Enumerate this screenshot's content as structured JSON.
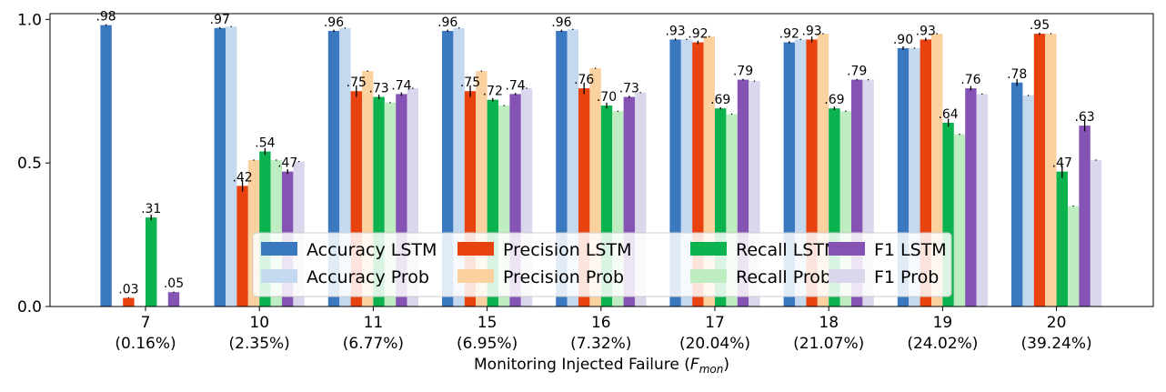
{
  "chart_data": {
    "type": "bar",
    "categories": [
      "7",
      "10",
      "11",
      "15",
      "16",
      "17",
      "18",
      "19",
      "20"
    ],
    "category_sublabels": [
      "(0.16%)",
      "(2.35%)",
      "(6.77%)",
      "(6.95%)",
      "(7.32%)",
      "(20.04%)",
      "(21.07%)",
      "(24.02%)",
      "(39.24%)"
    ],
    "xlabel": "Monitoring Injected Failure (F_mon)",
    "xlabel_main": "Monitoring Injected Failure (",
    "xlabel_var": "F",
    "xlabel_sub": "mon",
    "xlabel_end": ")",
    "ylabel": "",
    "ylim": [
      0,
      1.02
    ],
    "yticks": [
      0.0,
      0.5,
      1.0
    ],
    "ytick_labels": [
      "0.0",
      "0.5",
      "1.0"
    ],
    "legend_position": "lower center",
    "legend_columns": 4,
    "series": [
      {
        "name": "Accuracy LSTM",
        "color": "#3a78c0",
        "values": [
          0.98,
          0.97,
          0.96,
          0.96,
          0.96,
          0.93,
          0.92,
          0.9,
          0.78
        ],
        "labels": [
          ".98",
          ".97",
          ".96",
          ".96",
          ".96",
          ".93",
          ".92",
          ".90",
          ".78"
        ],
        "errors": [
          0.003,
          0.003,
          0.004,
          0.004,
          0.004,
          0.004,
          0.004,
          0.006,
          0.012
        ]
      },
      {
        "name": "Accuracy Prob",
        "color": "#c4d8ef",
        "values": [
          0.0,
          0.975,
          0.97,
          0.97,
          0.965,
          0.93,
          0.93,
          0.9,
          0.735
        ],
        "labels": [],
        "errors": [
          0,
          0.002,
          0.002,
          0.002,
          0.002,
          0.002,
          0.002,
          0.002,
          0.002
        ]
      },
      {
        "name": "Precision LSTM",
        "color": "#e8420f",
        "values": [
          0.03,
          0.42,
          0.75,
          0.75,
          0.76,
          0.92,
          0.93,
          0.93,
          0.95
        ],
        "labels": [
          ".03",
          ".42",
          ".75",
          ".75",
          ".76",
          ".92",
          ".93",
          ".93",
          ".95"
        ],
        "errors": [
          0.002,
          0.02,
          0.02,
          0.02,
          0.02,
          0.006,
          0.01,
          0.006,
          0.004
        ]
      },
      {
        "name": "Precision Prob",
        "color": "#fbd29f",
        "values": [
          0.0,
          0.51,
          0.82,
          0.82,
          0.83,
          0.94,
          0.95,
          0.95,
          0.95
        ],
        "labels": [],
        "errors": [
          0,
          0.002,
          0.002,
          0.002,
          0.002,
          0.002,
          0.002,
          0.002,
          0.002
        ]
      },
      {
        "name": "Recall LSTM",
        "color": "#0bb24e",
        "values": [
          0.31,
          0.54,
          0.73,
          0.72,
          0.7,
          0.69,
          0.69,
          0.64,
          0.47
        ],
        "labels": [
          ".31",
          ".54",
          ".73",
          ".72",
          ".70",
          ".69",
          ".69",
          ".64",
          ".47"
        ],
        "errors": [
          0.01,
          0.012,
          0.008,
          0.006,
          0.01,
          0.004,
          0.006,
          0.014,
          0.022
        ]
      },
      {
        "name": "Recall Prob",
        "color": "#bdedc1",
        "values": [
          0.0,
          0.51,
          0.71,
          0.7,
          0.68,
          0.67,
          0.68,
          0.6,
          0.35
        ],
        "labels": [],
        "errors": [
          0,
          0.002,
          0.002,
          0.002,
          0.002,
          0.002,
          0.002,
          0.002,
          0.002
        ]
      },
      {
        "name": "F1 LSTM",
        "color": "#8553b4",
        "values": [
          0.05,
          0.47,
          0.74,
          0.74,
          0.73,
          0.79,
          0.79,
          0.76,
          0.63
        ],
        "labels": [
          ".05",
          ".47",
          ".74",
          ".74",
          ".73",
          ".79",
          ".79",
          ".76",
          ".63"
        ],
        "errors": [
          0.002,
          0.008,
          0.006,
          0.004,
          0.004,
          0.003,
          0.003,
          0.008,
          0.02
        ]
      },
      {
        "name": "F1 Prob",
        "color": "#dad6ec",
        "values": [
          0.0,
          0.505,
          0.76,
          0.76,
          0.745,
          0.785,
          0.79,
          0.74,
          0.51
        ],
        "labels": [],
        "errors": [
          0,
          0.002,
          0.002,
          0.002,
          0.002,
          0.002,
          0.002,
          0.002,
          0.002
        ]
      }
    ]
  }
}
